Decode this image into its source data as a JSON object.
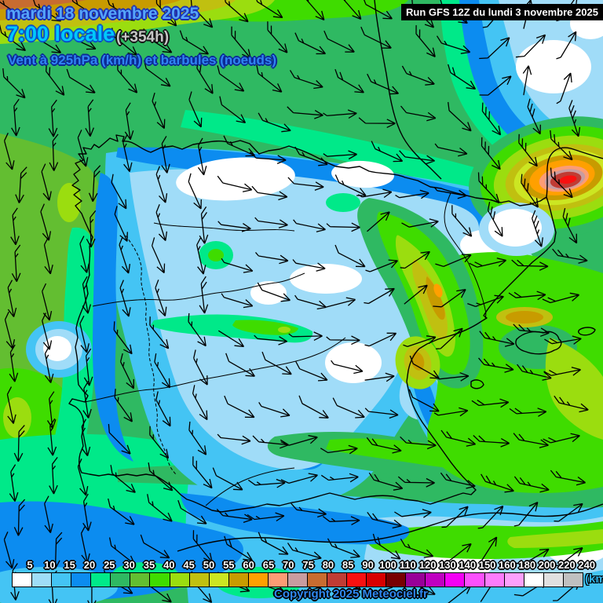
{
  "header": {
    "date_line": "mardi 18 novembre 2025",
    "time_line": "7:00 locale",
    "forecast_offset": "(+354h)",
    "subtitle": "Vent à 925hPa (km/h) et barbules (noeuds)"
  },
  "run_banner": {
    "text": "Run GFS 12Z du lundi 3 novembre 2025"
  },
  "legend": {
    "values": [
      5,
      10,
      15,
      20,
      25,
      30,
      35,
      40,
      45,
      50,
      55,
      60,
      65,
      70,
      75,
      80,
      85,
      90,
      100,
      110,
      120,
      130,
      140,
      150,
      160,
      180,
      200,
      220,
      240
    ],
    "colors": [
      "#ffffff",
      "#9fddf7",
      "#44c4f4",
      "#0c8cf0",
      "#00e989",
      "#2fb962",
      "#63be31",
      "#3fdc00",
      "#9bdd0f",
      "#c0c010",
      "#cce622",
      "#c89b00",
      "#ffa000",
      "#fc9c74",
      "#c89ca0",
      "#c86c30",
      "#c03c34",
      "#f81010",
      "#d80000",
      "#780000",
      "#980098",
      "#c000c0",
      "#f400f4",
      "#fc50fc",
      "#fc7cfc",
      "#fca0fc",
      "#ffffff",
      "#e0e0e0",
      "#c0c0c0"
    ],
    "unit_label": "(km"
  },
  "copyright": "Copyright 2025 Meteociel.fr",
  "icons": {
    "wind_barb": "barb-icon"
  }
}
